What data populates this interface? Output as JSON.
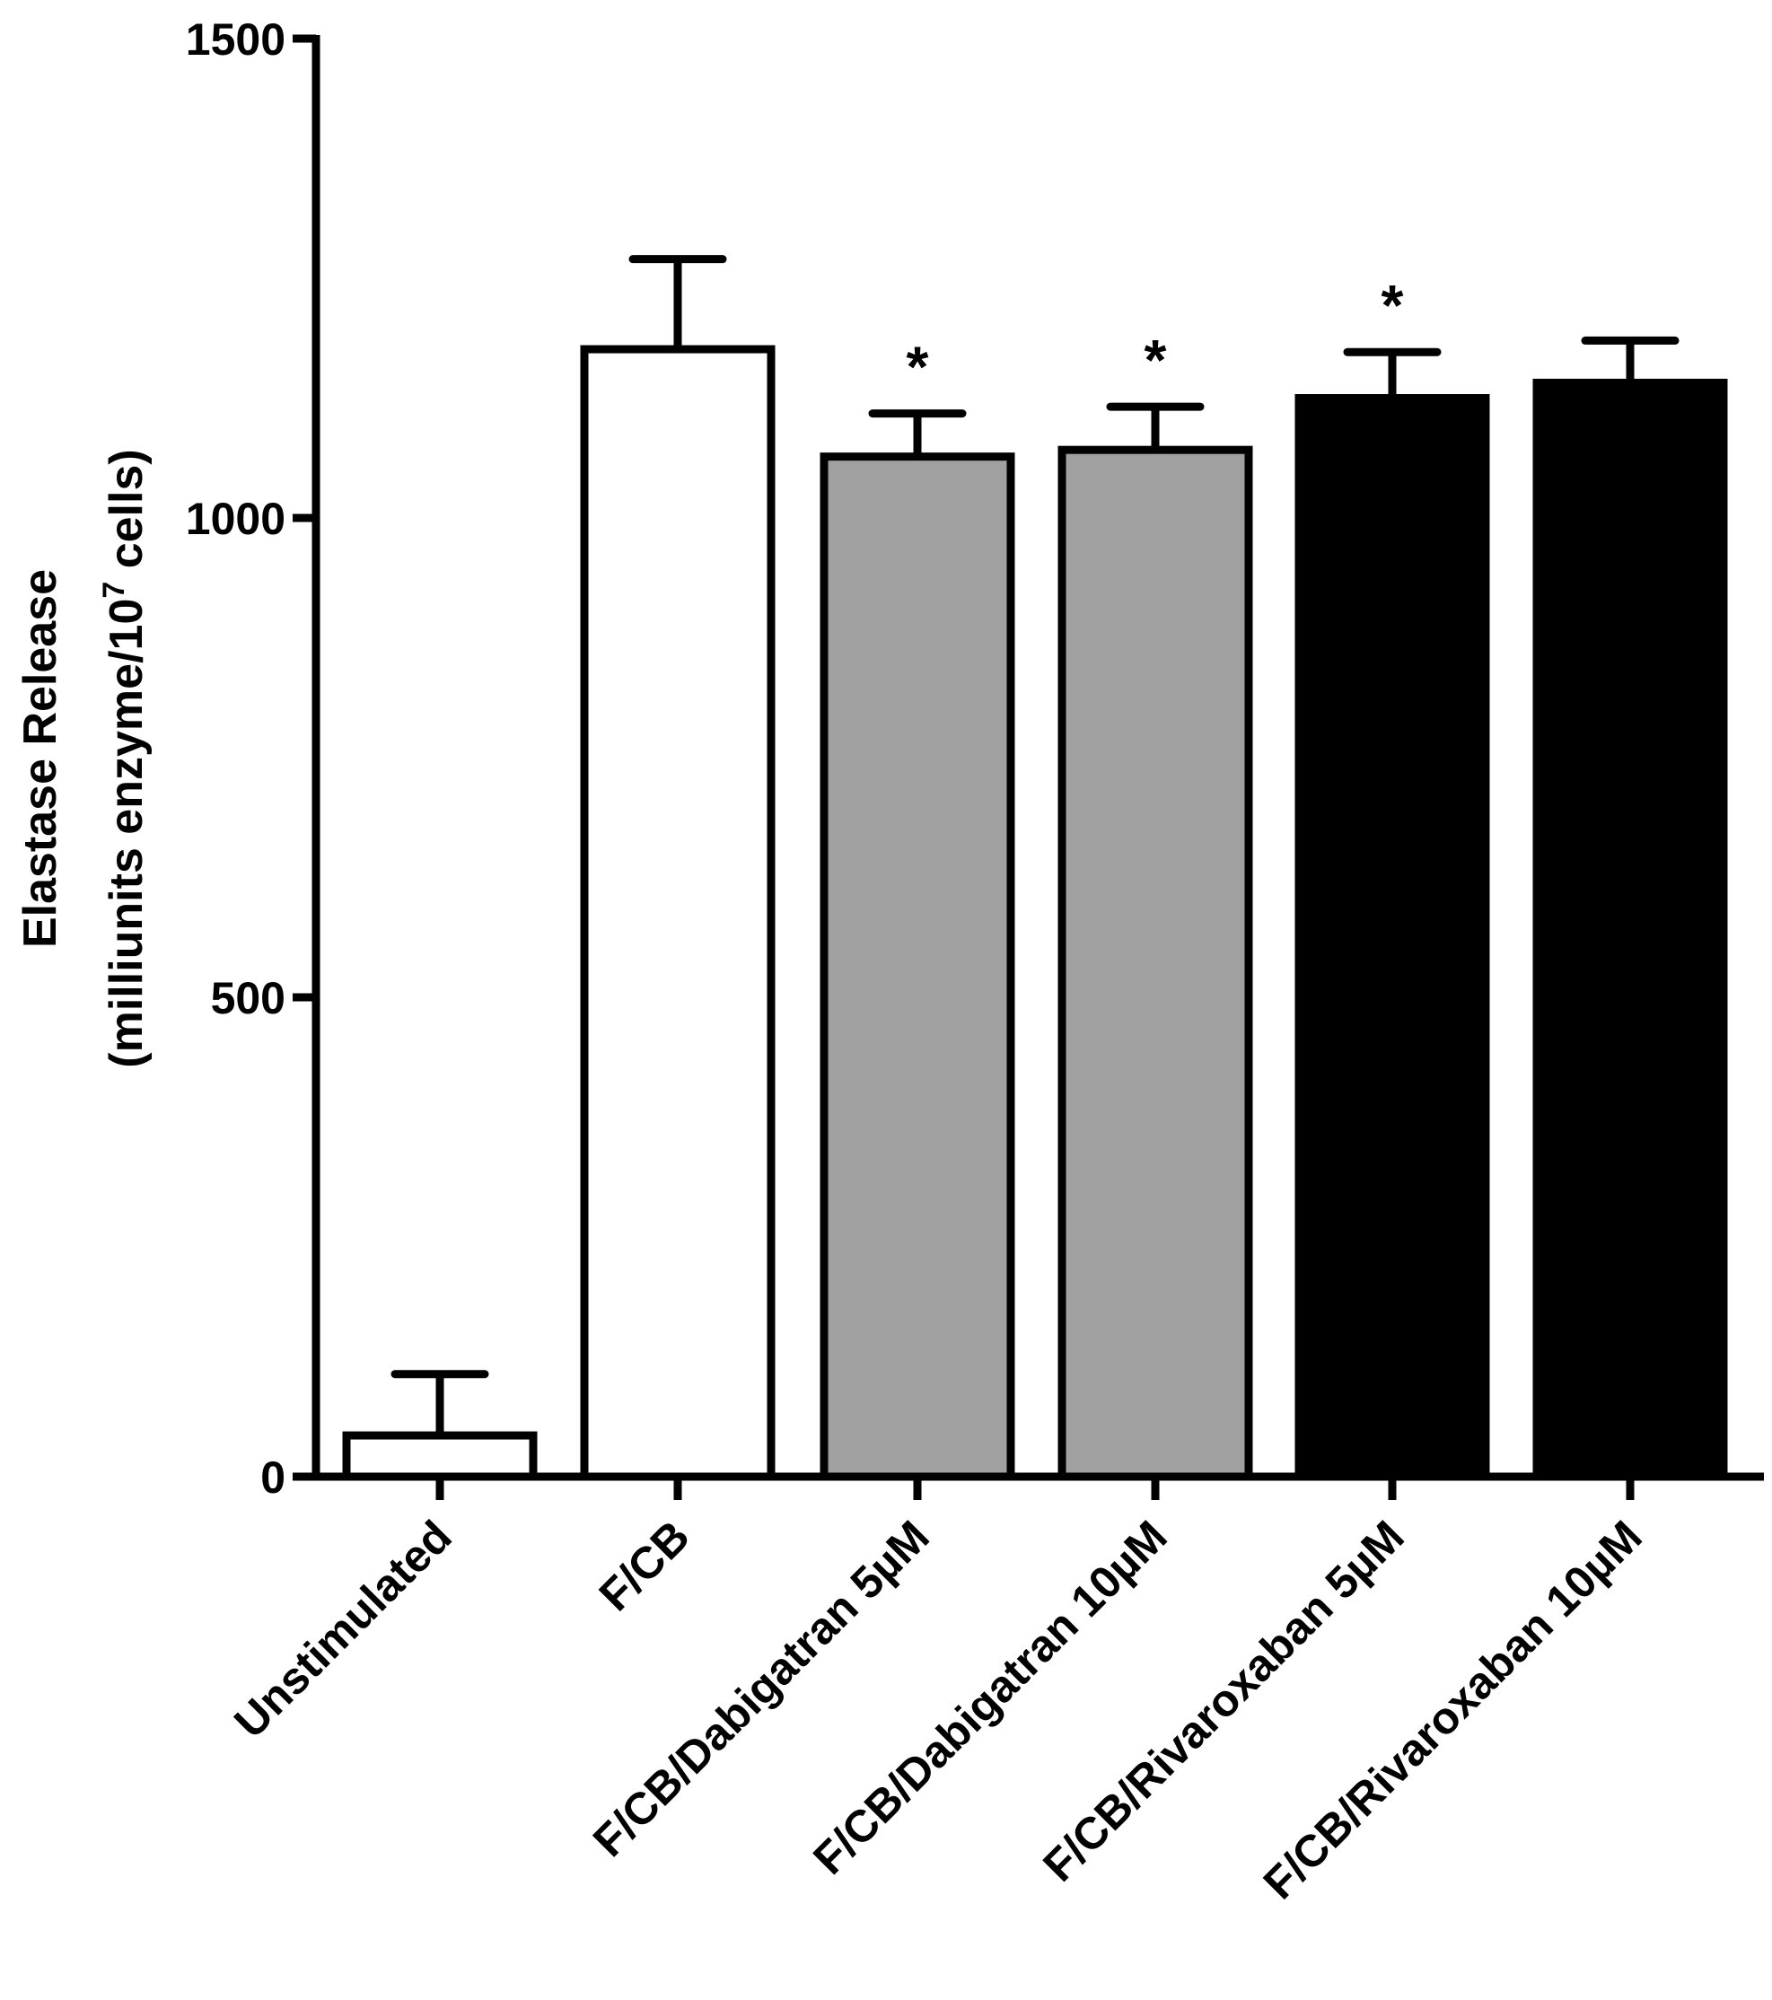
{
  "chart_data": {
    "type": "bar",
    "title": "",
    "xlabel": "",
    "ylabel": "Elastase Release",
    "ylabel_line2_prefix": "(milliunits enzyme/10",
    "ylabel_line2_sup": "7",
    "ylabel_line2_suffix": " cells)",
    "ylim": [
      0,
      1500
    ],
    "yticks": [
      0,
      500,
      1000,
      1500
    ],
    "ytick_labels": [
      "0",
      "500",
      "1000",
      "1500"
    ],
    "categories": [
      "Unstimulated",
      "F/CB",
      "F/CB/Dabigatran 5µM",
      "F/CB/Dabigatran 10µM",
      "F/CB/Rivaroxaban 5µM",
      "F/CB/Rivaroxaban 10µM"
    ],
    "values": [
      43,
      1176,
      1064,
      1071,
      1125,
      1141
    ],
    "error_upper": [
      107,
      1270,
      1109,
      1116,
      1173,
      1185
    ],
    "fills": [
      "#ffffff",
      "#ffffff",
      "#a0a0a0",
      "#a0a0a0",
      "#000000",
      "#000000"
    ],
    "annotations": [
      "",
      "",
      "*",
      "*",
      "*",
      ""
    ],
    "grid": false,
    "legend": "none"
  }
}
